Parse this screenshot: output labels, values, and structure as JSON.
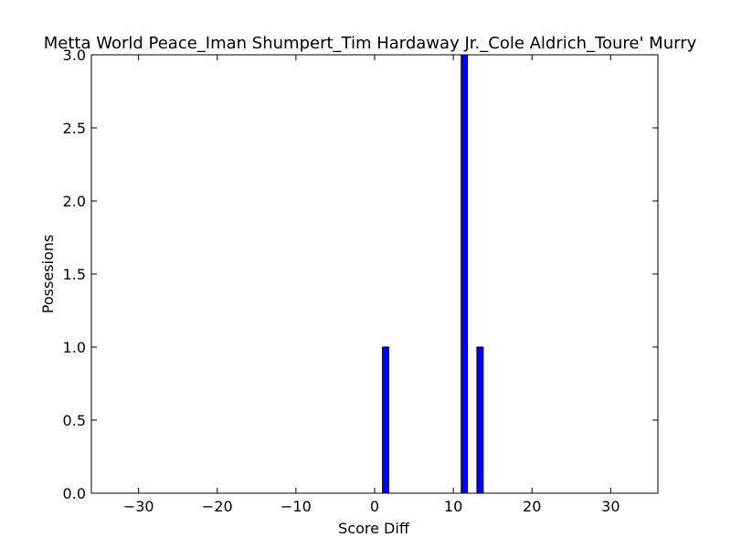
{
  "chart_data": {
    "type": "bar",
    "title": "Metta World Peace_Iman Shumpert_Tim Hardaway Jr._Cole Aldrich_Toure' Murry",
    "xlabel": "Score Diff",
    "ylabel": "Possesions",
    "xlim": [
      -36,
      36
    ],
    "ylim": [
      0,
      3.0
    ],
    "bar_width": 0.8,
    "x_ticks": [
      -30,
      -20,
      -10,
      0,
      10,
      20,
      30
    ],
    "x_tick_labels": [
      "−30",
      "−20",
      "−10",
      "0",
      "10",
      "20",
      "30"
    ],
    "y_ticks": [
      0.0,
      0.5,
      1.0,
      1.5,
      2.0,
      2.5,
      3.0
    ],
    "y_tick_labels": [
      "0.0",
      "0.5",
      "1.0",
      "1.5",
      "2.0",
      "2.5",
      "3.0"
    ],
    "x": [
      -35,
      -34,
      -33,
      -32,
      -31,
      -30,
      -29,
      -28,
      -27,
      -26,
      -25,
      -24,
      -23,
      -22,
      -21,
      -20,
      -19,
      -18,
      -17,
      -16,
      -15,
      -14,
      -13,
      -12,
      -11,
      -10,
      -9,
      -8,
      -7,
      -6,
      -5,
      -4,
      -3,
      -2,
      -1,
      0,
      1,
      2,
      3,
      4,
      5,
      6,
      7,
      8,
      9,
      10,
      11,
      12,
      13,
      14,
      15,
      16,
      17,
      18,
      19,
      20,
      21,
      22,
      23,
      24,
      25,
      26,
      27,
      28,
      29,
      30,
      31,
      32,
      33,
      34
    ],
    "values": [
      0,
      0,
      0,
      0,
      0,
      0,
      0,
      0,
      0,
      0,
      0,
      0,
      0,
      0,
      0,
      0,
      0,
      0,
      0,
      0,
      0,
      0,
      0,
      0,
      0,
      0,
      0,
      0,
      0,
      0,
      0,
      0,
      0,
      0,
      0,
      0,
      1,
      0,
      0,
      0,
      0,
      0,
      0,
      0,
      0,
      0,
      3,
      0,
      1,
      0,
      0,
      0,
      0,
      0,
      0,
      0,
      0,
      0,
      0,
      0,
      0,
      0,
      0,
      0,
      0,
      0,
      0,
      0,
      0,
      0
    ],
    "bar_color": "#0000ff",
    "edge_color": "#000000",
    "grid": false
  }
}
